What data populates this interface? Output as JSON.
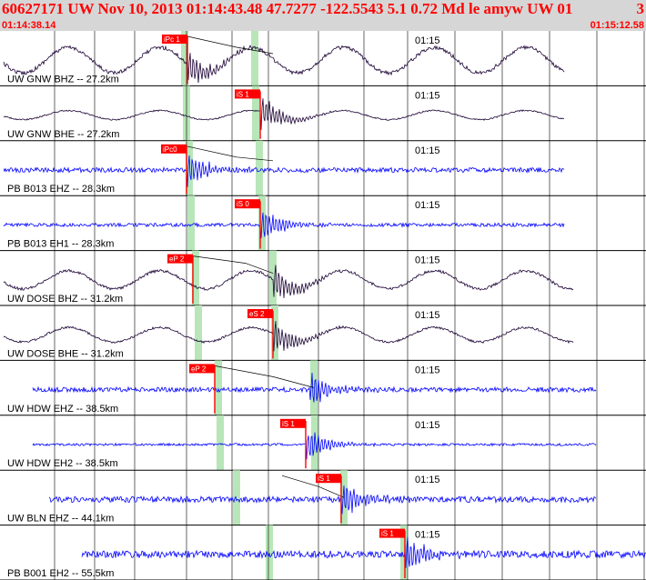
{
  "header": {
    "title": "60627171 UW Nov 10, 2013 01:14:43.48    47.7277 -122.5543  5.1 0.72 Md le amyw UW 01",
    "count": "3",
    "time_start": "01:14:38.14",
    "time_end": "01:15:12.58"
  },
  "time_marker": "01:15",
  "colors": {
    "header_bg": "#d6d6d6",
    "header_text": "#ff0000",
    "trace_purple": "#1a0033",
    "trace_blue": "#0000ff",
    "pick_red": "#ff0000",
    "window_green": "#b8e6b8"
  },
  "traces": [
    {
      "label": "UW GNW BHZ -- 27.2km",
      "color": "purple",
      "pick": "iPc 1",
      "has_pick_curve": true
    },
    {
      "label": "UW GNW BHE -- 27.2km",
      "color": "purple",
      "pick": "iS 1",
      "has_pick_curve": false
    },
    {
      "label": "PB B013 EHZ -- 28.3km",
      "color": "blue",
      "pick": "iPc0",
      "has_pick_curve": true
    },
    {
      "label": "PB B013 EH1 -- 28.3km",
      "color": "blue",
      "pick": "iS 0",
      "has_pick_curve": false
    },
    {
      "label": "UW DOSE BHZ -- 31.2km",
      "color": "purple",
      "pick": "eP 2",
      "has_pick_curve": true
    },
    {
      "label": "UW DOSE BHE -- 31.2km",
      "color": "purple",
      "pick": "eS 2",
      "has_pick_curve": false
    },
    {
      "label": "UW HDW EHZ -- 38.5km",
      "color": "blue",
      "pick": "eP 2",
      "has_pick_curve": true
    },
    {
      "label": "UW HDW EH2 -- 38.5km",
      "color": "blue",
      "pick": "iS 1",
      "has_pick_curve": false
    },
    {
      "label": "UW BLN EHZ -- 44.1km",
      "color": "blue",
      "pick": "iS 1",
      "has_pick_curve": true
    },
    {
      "label": "PB B001 EH2 -- 55.5km",
      "color": "blue",
      "pick": "iS 1",
      "has_pick_curve": false
    }
  ]
}
